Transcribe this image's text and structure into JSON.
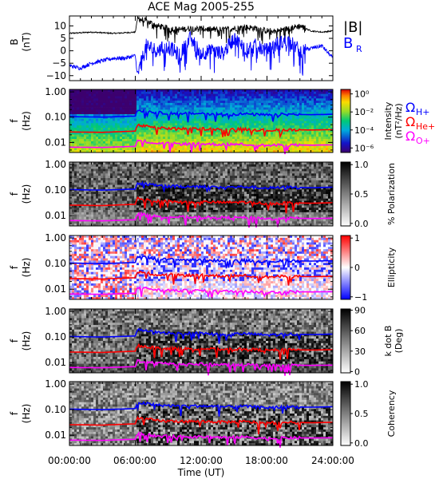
{
  "chart_data": {
    "title": "ACE Mag 2005-255",
    "xlabel": "Time (UT)",
    "x_ticks": [
      "00:00:00",
      "06:00:00",
      "12:00:00",
      "18:00:00",
      "24:00:00"
    ],
    "x_range_hours": [
      0,
      24
    ],
    "event_onset_hour": 6.2,
    "panels": [
      {
        "type": "line",
        "ylabel": "B",
        "yunit": "(nT)",
        "ylim": [
          -12,
          14
        ],
        "yticks": [
          10,
          5,
          0,
          -5,
          -10
        ],
        "series": [
          {
            "name": "|B|",
            "color": "#000000",
            "x": [
              0,
              2,
              4,
              6,
              6.2,
              7,
              8,
              9,
              10,
              11,
              12,
              13,
              14,
              15,
              16,
              17,
              18,
              19,
              20,
              21,
              22,
              23,
              24
            ],
            "y": [
              7,
              7.5,
              7,
              7.5,
              13,
              12,
              10,
              9,
              8.5,
              9,
              9,
              8.5,
              8.5,
              9,
              9.5,
              9,
              8,
              8,
              9,
              10,
              8,
              7.5,
              8
            ]
          },
          {
            "name": "B_R",
            "color": "#0000ff",
            "x": [
              0,
              1,
              2,
              3,
              4,
              5,
              6,
              6.2,
              7,
              8,
              9,
              10,
              11,
              12,
              13,
              14,
              15,
              16,
              17,
              18,
              19,
              20,
              21,
              22,
              23,
              24
            ],
            "y": [
              -6,
              -7,
              -5,
              -4,
              -3,
              -3,
              -2,
              -10,
              2,
              0,
              2,
              -2,
              5,
              -1,
              0,
              -1,
              5,
              1,
              2,
              0,
              3,
              4,
              0,
              1,
              2,
              -3
            ]
          }
        ]
      },
      {
        "type": "heatmap",
        "ylabel": "f",
        "yunit": "(Hz)",
        "colorbar_label": "Intensity",
        "colorbar_unit": "(nT²/Hz)",
        "colorbar_ticks": [
          "10⁰",
          "10⁻²",
          "10⁻⁴",
          "10⁻⁶"
        ],
        "colorbar_range_log10": [
          -6.5,
          0.5
        ]
      },
      {
        "type": "heatmap",
        "ylabel": "f",
        "yunit": "(Hz)",
        "colorbar_label": "% Polarization",
        "colorbar_ticks": [
          "1.0",
          "0.5",
          "0.0"
        ],
        "colorbar_range": [
          0,
          1
        ]
      },
      {
        "type": "heatmap",
        "ylabel": "f",
        "yunit": "(Hz)",
        "colorbar_label": "Ellipticity",
        "colorbar_ticks": [
          "1",
          "0",
          "−1"
        ],
        "colorbar_range": [
          -1,
          1
        ]
      },
      {
        "type": "heatmap",
        "ylabel": "f",
        "yunit": "(Hz)",
        "colorbar_label": "k dot B",
        "colorbar_unit": "(Deg)",
        "colorbar_ticks": [
          "90",
          "60",
          "30",
          "0"
        ],
        "colorbar_range": [
          0,
          90
        ]
      },
      {
        "type": "heatmap",
        "ylabel": "f",
        "yunit": "(Hz)",
        "colorbar_label": "Coherency",
        "colorbar_ticks": [
          "1.0",
          "0.5",
          "0.0"
        ],
        "colorbar_range": [
          0,
          1
        ]
      }
    ],
    "y_ticks_freq": [
      "1.00",
      "0.10",
      "0.01"
    ],
    "freq_range_hz": [
      0.004,
      1.25
    ],
    "gyrofrequency_lines": [
      {
        "name": "ΩH+",
        "color": "#0000ff",
        "x": [
          0,
          3,
          6,
          6.2,
          8,
          10,
          12,
          14,
          16,
          18,
          20,
          22,
          24
        ],
        "f": [
          0.105,
          0.1,
          0.11,
          0.19,
          0.15,
          0.14,
          0.14,
          0.13,
          0.135,
          0.12,
          0.13,
          0.125,
          0.13
        ]
      },
      {
        "name": "ΩHe+",
        "color": "#ff0000",
        "x": [
          0,
          3,
          6,
          6.2,
          8,
          10,
          12,
          14,
          16,
          18,
          20,
          22,
          24
        ],
        "f": [
          0.026,
          0.025,
          0.028,
          0.048,
          0.037,
          0.035,
          0.035,
          0.033,
          0.034,
          0.03,
          0.032,
          0.031,
          0.032
        ]
      },
      {
        "name": "ΩO+",
        "color": "#ff00ff",
        "x": [
          0,
          3,
          6,
          6.2,
          8,
          10,
          12,
          14,
          16,
          18,
          20,
          22,
          24
        ],
        "f": [
          0.0065,
          0.0063,
          0.007,
          0.012,
          0.0093,
          0.0088,
          0.0088,
          0.0083,
          0.0085,
          0.0075,
          0.008,
          0.0078,
          0.008
        ]
      }
    ],
    "colors": {
      "h_plus": "#0000ff",
      "he_plus": "#ff0000",
      "o_plus": "#ff00ff"
    },
    "legend": {
      "b_total": "|B|",
      "b_r_main": "B",
      "b_r_sub": "R",
      "h_plus_main": "Ω",
      "h_plus_sub": "H+",
      "he_plus_main": "Ω",
      "he_plus_sub": "He+",
      "o_plus_main": "Ω",
      "o_plus_sub": "O+"
    }
  }
}
